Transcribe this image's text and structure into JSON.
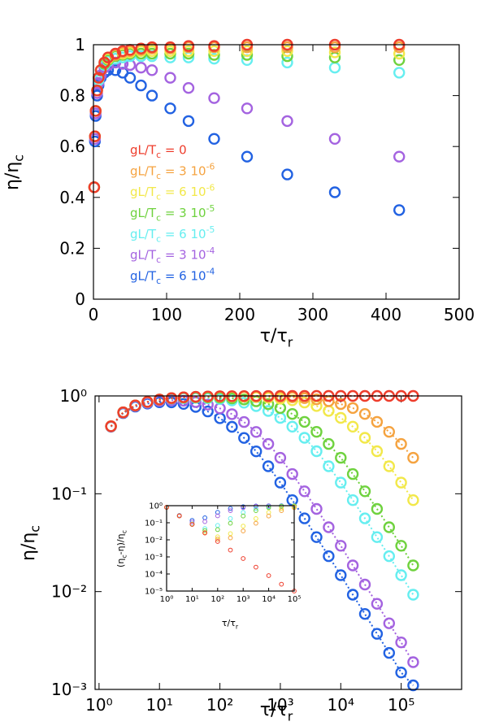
{
  "chart_data": [
    {
      "type": "scatter",
      "xlabel": [
        {
          "text": "τ/τ"
        },
        {
          "sub": "r"
        }
      ],
      "ylabel": [
        {
          "text": "η/η"
        },
        {
          "sub": "c"
        }
      ],
      "xlim": [
        0,
        500
      ],
      "ylim": [
        0,
        1
      ],
      "xticks": [
        0,
        100,
        200,
        300,
        400,
        500
      ],
      "yticks": [
        0,
        0.2,
        0.4,
        0.6,
        0.8,
        1
      ],
      "legend": "center left",
      "x": [
        1,
        2,
        3,
        5,
        7,
        10,
        15,
        20,
        30,
        40,
        50,
        65,
        80,
        105,
        130,
        165,
        210,
        265,
        330,
        418
      ],
      "series": [
        {
          "name": [
            {
              "text": "gL/T"
            },
            {
              "sub": "c"
            },
            {
              "text": " = 0"
            }
          ],
          "color": "#ee3d2c",
          "values": [
            0.44,
            0.64,
            0.74,
            0.82,
            0.87,
            0.9,
            0.93,
            0.95,
            0.965,
            0.975,
            0.98,
            0.985,
            0.99,
            0.99,
            0.995,
            0.995,
            1,
            1,
            1,
            1
          ]
        },
        {
          "name": [
            {
              "text": "gL/T"
            },
            {
              "sub": "c"
            },
            {
              "text": " = 3 10"
            },
            {
              "sup": "-6"
            }
          ],
          "color": "#f5a340",
          "values": [
            0.44,
            0.64,
            0.74,
            0.82,
            0.87,
            0.9,
            0.93,
            0.95,
            0.96,
            0.97,
            0.975,
            0.98,
            0.985,
            0.985,
            0.99,
            0.99,
            0.99,
            0.99,
            0.99,
            0.99
          ]
        },
        {
          "name": [
            {
              "text": "gL/T"
            },
            {
              "sub": "c"
            },
            {
              "text": " = 6 10"
            },
            {
              "sup": "-6"
            }
          ],
          "color": "#f2e84a",
          "values": [
            0.44,
            0.64,
            0.74,
            0.82,
            0.87,
            0.9,
            0.93,
            0.945,
            0.96,
            0.965,
            0.97,
            0.975,
            0.975,
            0.975,
            0.975,
            0.975,
            0.975,
            0.975,
            0.97,
            0.965
          ]
        },
        {
          "name": [
            {
              "text": "gL/T"
            },
            {
              "sub": "c"
            },
            {
              "text": " = 3 10"
            },
            {
              "sup": "-5"
            }
          ],
          "color": "#6fd23e",
          "values": [
            0.44,
            0.64,
            0.74,
            0.82,
            0.87,
            0.9,
            0.925,
            0.94,
            0.955,
            0.96,
            0.965,
            0.965,
            0.965,
            0.965,
            0.965,
            0.96,
            0.96,
            0.955,
            0.95,
            0.94
          ]
        },
        {
          "name": [
            {
              "text": "gL/T"
            },
            {
              "sub": "c"
            },
            {
              "text": " = 6 10"
            },
            {
              "sup": "-5"
            }
          ],
          "color": "#66eef0",
          "values": [
            0.44,
            0.64,
            0.74,
            0.82,
            0.86,
            0.9,
            0.92,
            0.935,
            0.945,
            0.95,
            0.955,
            0.955,
            0.955,
            0.95,
            0.95,
            0.945,
            0.94,
            0.93,
            0.91,
            0.89
          ]
        },
        {
          "name": [
            {
              "text": "gL/T"
            },
            {
              "sub": "c"
            },
            {
              "text": " = 3 10"
            },
            {
              "sup": "-4"
            }
          ],
          "color": "#a463e0",
          "values": [
            0.44,
            0.63,
            0.73,
            0.81,
            0.85,
            0.88,
            0.91,
            0.92,
            0.93,
            0.925,
            0.92,
            0.91,
            0.9,
            0.87,
            0.83,
            0.79,
            0.75,
            0.7,
            0.63,
            0.56
          ]
        },
        {
          "name": [
            {
              "text": "gL/T"
            },
            {
              "sub": "c"
            },
            {
              "text": " = 6 10"
            },
            {
              "sup": "-4"
            }
          ],
          "color": "#2262e2",
          "values": [
            0.44,
            0.62,
            0.72,
            0.8,
            0.84,
            0.87,
            0.89,
            0.9,
            0.9,
            0.89,
            0.87,
            0.84,
            0.8,
            0.75,
            0.7,
            0.63,
            0.56,
            0.49,
            0.42,
            0.35
          ]
        }
      ]
    },
    {
      "type": "scatter",
      "xlabel": [
        {
          "text": "τ/τ"
        },
        {
          "sub": "r"
        }
      ],
      "ylabel": [
        {
          "text": "η/η"
        },
        {
          "sub": "c"
        }
      ],
      "xlog": true,
      "ylog": true,
      "dotted_lines": true,
      "xlim": [
        0.86,
        1000000
      ],
      "ylim": [
        0.001,
        1
      ],
      "xticks": [
        {
          "value": 1,
          "label": "10⁰"
        },
        {
          "value": 10,
          "label": "10¹"
        },
        {
          "value": 100,
          "label": "10²"
        },
        {
          "value": 1000,
          "label": "10³"
        },
        {
          "value": 10000,
          "label": "10⁴"
        },
        {
          "value": 100000,
          "label": "10⁵"
        }
      ],
      "yticks": [
        {
          "value": 0.001,
          "label": "10⁻³"
        },
        {
          "value": 0.01,
          "label": "10⁻²"
        },
        {
          "value": 0.1,
          "label": "10⁻¹"
        },
        {
          "value": 1,
          "label": "10⁰"
        }
      ],
      "x": [
        1.58,
        2.51,
        3.98,
        6.31,
        10,
        15.8,
        25.1,
        39.8,
        63.1,
        100,
        158,
        251,
        398,
        631,
        1000,
        1580,
        2510,
        3980,
        6310,
        10000,
        15800,
        25100,
        39800,
        63100,
        100000,
        158000
      ],
      "series": [
        {
          "color": "#ee3d2c",
          "values": [
            0.49,
            0.68,
            0.8,
            0.87,
            0.92,
            0.95,
            0.968,
            0.98,
            0.987,
            0.992,
            0.995,
            0.997,
            0.998,
            0.999,
            1,
            1,
            1,
            1,
            1,
            1,
            1,
            1,
            1,
            1,
            1,
            1
          ]
        },
        {
          "color": "#f5a340",
          "values": [
            0.49,
            0.68,
            0.8,
            0.87,
            0.92,
            0.95,
            0.968,
            0.979,
            0.986,
            0.99,
            0.992,
            0.992,
            0.99,
            0.986,
            0.979,
            0.968,
            0.95,
            0.923,
            0.883,
            0.826,
            0.752,
            0.654,
            0.543,
            0.429,
            0.323,
            0.233
          ]
        },
        {
          "color": "#f2e84a",
          "values": [
            0.49,
            0.68,
            0.8,
            0.87,
            0.92,
            0.949,
            0.966,
            0.977,
            0.983,
            0.985,
            0.985,
            0.98,
            0.972,
            0.958,
            0.937,
            0.904,
            0.856,
            0.789,
            0.703,
            0.597,
            0.485,
            0.373,
            0.272,
            0.191,
            0.13,
            0.086
          ]
        },
        {
          "color": "#6fd23e",
          "values": [
            0.49,
            0.679,
            0.799,
            0.868,
            0.917,
            0.945,
            0.96,
            0.967,
            0.966,
            0.96,
            0.945,
            0.92,
            0.881,
            0.825,
            0.752,
            0.654,
            0.543,
            0.429,
            0.323,
            0.233,
            0.159,
            0.106,
            0.07,
            0.0455,
            0.0294,
            0.0185
          ]
        },
        {
          "color": "#66eef0",
          "values": [
            0.49,
            0.679,
            0.798,
            0.867,
            0.914,
            0.94,
            0.952,
            0.955,
            0.947,
            0.93,
            0.9,
            0.853,
            0.787,
            0.702,
            0.597,
            0.485,
            0.373,
            0.272,
            0.191,
            0.13,
            0.086,
            0.056,
            0.036,
            0.023,
            0.0147,
            0.0093
          ]
        },
        {
          "color": "#a463e0",
          "values": [
            0.488,
            0.675,
            0.79,
            0.852,
            0.891,
            0.903,
            0.893,
            0.865,
            0.815,
            0.746,
            0.651,
            0.541,
            0.428,
            0.323,
            0.233,
            0.159,
            0.106,
            0.07,
            0.0455,
            0.0294,
            0.0185,
            0.0118,
            0.0075,
            0.00474,
            0.00302,
            0.0019
          ]
        },
        {
          "color": "#2262e2",
          "values": [
            0.485,
            0.668,
            0.779,
            0.835,
            0.862,
            0.859,
            0.829,
            0.773,
            0.694,
            0.592,
            0.483,
            0.372,
            0.271,
            0.191,
            0.13,
            0.086,
            0.056,
            0.036,
            0.023,
            0.0147,
            0.0093,
            0.0059,
            0.0037,
            0.00236,
            0.00149,
            0.0011
          ]
        }
      ]
    },
    {
      "type": "scatter",
      "xlabel": [
        {
          "text": "τ/τ"
        },
        {
          "sub": "r"
        }
      ],
      "ylabel": [
        {
          "text": "(η"
        },
        {
          "sub": "c"
        },
        {
          "text": "-η)/η"
        },
        {
          "sub": "c"
        }
      ],
      "xlog": true,
      "ylog": true,
      "xlim": [
        1,
        100000
      ],
      "ylim": [
        1e-05,
        1
      ],
      "xticks": [
        {
          "value": 1,
          "label": "10⁰"
        },
        {
          "value": 10,
          "label": "10¹"
        },
        {
          "value": 100,
          "label": "10²"
        },
        {
          "value": 1000,
          "label": "10³"
        },
        {
          "value": 10000,
          "label": "10⁴"
        },
        {
          "value": 100000,
          "label": "10⁵"
        }
      ],
      "yticks": [
        {
          "value": 1e-05,
          "label": "10⁻⁵"
        },
        {
          "value": 0.0001,
          "label": "10⁻⁴"
        },
        {
          "value": 0.001,
          "label": "10⁻³"
        },
        {
          "value": 0.01,
          "label": "10⁻²"
        },
        {
          "value": 0.1,
          "label": "10⁻¹"
        },
        {
          "value": 1,
          "label": "10⁰"
        }
      ],
      "x": [
        1,
        3.16,
        10,
        31.6,
        100,
        316,
        1000,
        3160,
        10000,
        31600,
        100000
      ],
      "series": [
        {
          "color": "#ee3d2c",
          "values": [
            0.8,
            0.25,
            0.08,
            0.025,
            0.008,
            0.0025,
            0.0008,
            0.00025,
            8e-05,
            2.5e-05,
            1e-05
          ]
        },
        {
          "color": "#f5a340",
          "values": [
            0.8,
            0.253,
            0.08,
            0.026,
            0.011,
            0.013,
            0.033,
            0.094,
            0.248,
            0.51,
            0.767
          ]
        },
        {
          "color": "#f2e84a",
          "values": [
            0.8,
            0.253,
            0.08,
            0.027,
            0.015,
            0.023,
            0.064,
            0.175,
            0.401,
            0.679,
            0.87
          ]
        },
        {
          "color": "#6fd23e",
          "values": [
            0.8,
            0.253,
            0.083,
            0.035,
            0.04,
            0.094,
            0.248,
            0.51,
            0.767,
            0.912,
            0.971
          ]
        },
        {
          "color": "#66eef0",
          "values": [
            0.8,
            0.254,
            0.086,
            0.046,
            0.07,
            0.177,
            0.403,
            0.68,
            0.87,
            0.955,
            0.985
          ]
        },
        {
          "color": "#a463e0",
          "values": [
            0.8,
            0.261,
            0.109,
            0.117,
            0.254,
            0.51,
            0.767,
            0.912,
            0.971,
            0.991,
            0.997
          ]
        },
        {
          "color": "#2262e2",
          "values": [
            0.801,
            0.269,
            0.138,
            0.196,
            0.408,
            0.68,
            0.87,
            0.955,
            0.985,
            0.995,
            0.9985
          ]
        }
      ]
    }
  ]
}
